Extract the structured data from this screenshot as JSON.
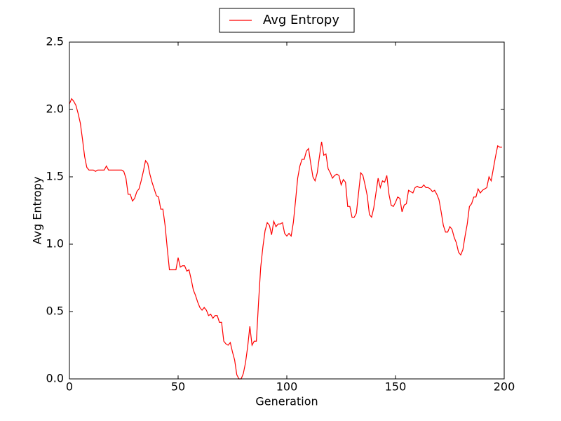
{
  "chart_data": {
    "type": "line",
    "xlabel": "Generation",
    "ylabel": "Avg Entropy",
    "x": [
      0,
      1,
      2,
      3,
      4,
      5,
      6,
      7,
      8,
      9,
      10,
      11,
      12,
      13,
      14,
      15,
      16,
      17,
      18,
      19,
      20,
      21,
      22,
      23,
      24,
      25,
      26,
      27,
      28,
      29,
      30,
      31,
      32,
      33,
      34,
      35,
      36,
      37,
      38,
      39,
      40,
      41,
      42,
      43,
      44,
      45,
      46,
      47,
      48,
      49,
      50,
      51,
      52,
      53,
      54,
      55,
      56,
      57,
      58,
      59,
      60,
      61,
      62,
      63,
      64,
      65,
      66,
      67,
      68,
      69,
      70,
      71,
      72,
      73,
      74,
      75,
      76,
      77,
      78,
      79,
      80,
      81,
      82,
      83,
      84,
      85,
      86,
      87,
      88,
      89,
      90,
      91,
      92,
      93,
      94,
      95,
      96,
      97,
      98,
      99,
      100,
      101,
      102,
      103,
      104,
      105,
      106,
      107,
      108,
      109,
      110,
      111,
      112,
      113,
      114,
      115,
      116,
      117,
      118,
      119,
      120,
      121,
      122,
      123,
      124,
      125,
      126,
      127,
      128,
      129,
      130,
      131,
      132,
      133,
      134,
      135,
      136,
      137,
      138,
      139,
      140,
      141,
      142,
      143,
      144,
      145,
      146,
      147,
      148,
      149,
      150,
      151,
      152,
      153,
      154,
      155,
      156,
      157,
      158,
      159,
      160,
      161,
      162,
      163,
      164,
      165,
      166,
      167,
      168,
      169,
      170,
      171,
      172,
      173,
      174,
      175,
      176,
      177,
      178,
      179,
      180,
      181,
      182,
      183,
      184,
      185,
      186,
      187,
      188,
      189,
      190,
      191,
      192,
      193,
      194,
      195,
      196,
      197,
      198,
      199
    ],
    "series": [
      {
        "name": "Avg Entropy",
        "color": "#ff0000",
        "values": [
          2.04,
          2.08,
          2.06,
          2.03,
          1.97,
          1.9,
          1.78,
          1.65,
          1.57,
          1.55,
          1.55,
          1.55,
          1.54,
          1.55,
          1.55,
          1.55,
          1.55,
          1.58,
          1.55,
          1.55,
          1.55,
          1.55,
          1.55,
          1.55,
          1.55,
          1.54,
          1.49,
          1.37,
          1.37,
          1.32,
          1.34,
          1.39,
          1.41,
          1.47,
          1.54,
          1.62,
          1.6,
          1.52,
          1.46,
          1.41,
          1.36,
          1.35,
          1.26,
          1.26,
          1.14,
          0.97,
          0.81,
          0.81,
          0.81,
          0.81,
          0.9,
          0.83,
          0.84,
          0.84,
          0.8,
          0.81,
          0.74,
          0.66,
          0.62,
          0.57,
          0.53,
          0.51,
          0.53,
          0.51,
          0.47,
          0.48,
          0.45,
          0.47,
          0.47,
          0.42,
          0.42,
          0.28,
          0.26,
          0.25,
          0.27,
          0.2,
          0.14,
          0.03,
          0.0,
          0.0,
          0.04,
          0.12,
          0.24,
          0.39,
          0.25,
          0.28,
          0.28,
          0.57,
          0.83,
          0.98,
          1.1,
          1.16,
          1.14,
          1.07,
          1.17,
          1.13,
          1.15,
          1.15,
          1.16,
          1.08,
          1.06,
          1.08,
          1.06,
          1.16,
          1.32,
          1.49,
          1.58,
          1.63,
          1.63,
          1.69,
          1.71,
          1.6,
          1.5,
          1.47,
          1.53,
          1.65,
          1.76,
          1.66,
          1.67,
          1.56,
          1.53,
          1.49,
          1.51,
          1.52,
          1.51,
          1.44,
          1.48,
          1.46,
          1.28,
          1.28,
          1.2,
          1.2,
          1.23,
          1.38,
          1.53,
          1.51,
          1.44,
          1.36,
          1.22,
          1.2,
          1.27,
          1.38,
          1.49,
          1.42,
          1.47,
          1.46,
          1.51,
          1.37,
          1.29,
          1.28,
          1.31,
          1.35,
          1.34,
          1.24,
          1.29,
          1.3,
          1.4,
          1.39,
          1.38,
          1.42,
          1.43,
          1.42,
          1.42,
          1.44,
          1.42,
          1.42,
          1.41,
          1.39,
          1.4,
          1.37,
          1.33,
          1.24,
          1.14,
          1.09,
          1.09,
          1.13,
          1.11,
          1.05,
          1.01,
          0.94,
          0.92,
          0.96,
          1.06,
          1.15,
          1.28,
          1.3,
          1.35,
          1.35,
          1.41,
          1.38,
          1.4,
          1.41,
          1.42,
          1.5,
          1.47,
          1.56,
          1.65,
          1.73,
          1.72,
          1.72
        ]
      }
    ],
    "xlim": [
      0,
      200
    ],
    "xticks": [
      0,
      50,
      100,
      150,
      200
    ],
    "ylim": [
      0,
      2.5
    ],
    "yticks": [
      {
        "value": 0,
        "label": "0.0"
      },
      {
        "value": 0.5,
        "label": "0.5"
      },
      {
        "value": 1,
        "label": "1.0"
      },
      {
        "value": 1.5,
        "label": "1.5"
      },
      {
        "value": 2,
        "label": "2.0"
      },
      {
        "value": 2.5,
        "label": "2.5"
      }
    ],
    "grid": false,
    "legend": "upper center"
  }
}
